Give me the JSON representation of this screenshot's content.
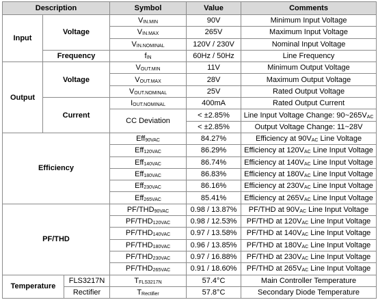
{
  "header": [
    "Description",
    "Symbol",
    "Value",
    "Comments"
  ],
  "sections": [
    {
      "name": "Input",
      "items": [
        {
          "name": "Voltage",
          "rows": [
            {
              "symbol": [
                {
                  "text": "V"
                },
                {
                  "sub": "IN.MIN"
                }
              ],
              "value": "90V",
              "comment": [
                {
                  "text": "Minimum Input Voltage"
                }
              ]
            },
            {
              "symbol": [
                {
                  "text": "V"
                },
                {
                  "sub": "IN.MAX"
                }
              ],
              "value": "265V",
              "comment": [
                {
                  "text": "Maximum Input Voltage"
                }
              ]
            },
            {
              "symbol": [
                {
                  "text": "V"
                },
                {
                  "sub": "IN.NOMINAL"
                }
              ],
              "value": "120V / 230V",
              "comment": [
                {
                  "text": "Nominal Input Voltage"
                }
              ]
            }
          ]
        },
        {
          "name": "Frequency",
          "rows": [
            {
              "symbol": [
                {
                  "text": "f"
                },
                {
                  "sub": "IN"
                }
              ],
              "value": "60Hz / 50Hz",
              "comment": [
                {
                  "text": "Line Frequency"
                }
              ]
            }
          ]
        }
      ]
    },
    {
      "name": "Output",
      "items": [
        {
          "name": "Voltage",
          "rows": [
            {
              "symbol": [
                {
                  "text": "V"
                },
                {
                  "sub": "OUT.MIN"
                }
              ],
              "value": "11V",
              "comment": [
                {
                  "text": "Minimum Output Voltage"
                }
              ]
            },
            {
              "symbol": [
                {
                  "text": "V"
                },
                {
                  "sub": "OUT.MAX"
                }
              ],
              "value": "28V",
              "comment": [
                {
                  "text": "Maximum Output Voltage"
                }
              ]
            },
            {
              "symbol": [
                {
                  "text": "V"
                },
                {
                  "sub": "OUT.NOMINAL"
                }
              ],
              "value": "25V",
              "comment": [
                {
                  "text": "Rated Output Voltage"
                }
              ]
            }
          ]
        },
        {
          "name": "Current",
          "rows": [
            {
              "symbol": [
                {
                  "text": "I"
                },
                {
                  "sub": "OUT.NOMINAL"
                }
              ],
              "value": "400mA",
              "comment": [
                {
                  "text": "Rated Output Current"
                }
              ]
            },
            {
              "symbol": [
                {
                  "text": "CC Deviation"
                }
              ],
              "value": "< ±2.85%",
              "comment": [
                {
                  "text": "Line Input Voltage Change: 90~265V"
                },
                {
                  "sub": "AC"
                }
              ]
            },
            {
              "value": "< ±2.85%",
              "comment": [
                {
                  "text": "Output Voltage Change: 11~28V"
                }
              ]
            }
          ]
        }
      ]
    },
    {
      "name": "Efficiency",
      "rows": [
        {
          "symbol": [
            {
              "text": "Eff"
            },
            {
              "sub": "90VAC"
            }
          ],
          "value": "84.27%",
          "comment": [
            {
              "text": "Efficiency at 90V"
            },
            {
              "sub": "AC"
            },
            {
              "text": " Line  Voltage"
            }
          ]
        },
        {
          "symbol": [
            {
              "text": "Eff"
            },
            {
              "sub": "120VAC"
            }
          ],
          "value": "86.29%",
          "comment": [
            {
              "text": "Efficiency at 120V"
            },
            {
              "sub": "AC"
            },
            {
              "text": " Line Input Voltage"
            }
          ]
        },
        {
          "symbol": [
            {
              "text": "Eff"
            },
            {
              "sub": "140VAC"
            }
          ],
          "value": "86.74%",
          "comment": [
            {
              "text": "Efficiency at 140V"
            },
            {
              "sub": "AC"
            },
            {
              "text": " Line Input Voltage"
            }
          ]
        },
        {
          "symbol": [
            {
              "text": "Eff"
            },
            {
              "sub": "180VAC"
            }
          ],
          "value": "86.83%",
          "comment": [
            {
              "text": "Efficiency at 180V"
            },
            {
              "sub": "AC"
            },
            {
              "text": " Line Input Voltage"
            }
          ]
        },
        {
          "symbol": [
            {
              "text": "Eff"
            },
            {
              "sub": "230VAC"
            }
          ],
          "value": "86.16%",
          "comment": [
            {
              "text": "Efficiency at 230V"
            },
            {
              "sub": "AC"
            },
            {
              "text": " Line Input Voltage"
            }
          ]
        },
        {
          "symbol": [
            {
              "text": "Eff"
            },
            {
              "sub": "265VAC"
            }
          ],
          "value": "85.41%",
          "comment": [
            {
              "text": "Efficiency at 265V"
            },
            {
              "sub": "AC"
            },
            {
              "text": " Line Input Voltage"
            }
          ]
        }
      ]
    },
    {
      "name": "PF/THD",
      "rows": [
        {
          "symbol": [
            {
              "text": "PF/THD"
            },
            {
              "sub": "90VAC"
            }
          ],
          "value": "0.98 / 13.87%",
          "comment": [
            {
              "text": "PF/THD at 90V"
            },
            {
              "sub": "AC"
            },
            {
              "text": " Line Input Voltage"
            }
          ]
        },
        {
          "symbol": [
            {
              "text": "PF/THD"
            },
            {
              "sub": "120VAC"
            }
          ],
          "value": "0.98 / 12.53%",
          "comment": [
            {
              "text": "PF/THD at 120V"
            },
            {
              "sub": "AC"
            },
            {
              "text": " Line Input Voltage"
            }
          ]
        },
        {
          "symbol": [
            {
              "text": "PF/THD"
            },
            {
              "sub": "140VAC"
            }
          ],
          "value": "0.97 / 13.58%",
          "comment": [
            {
              "text": "PF/THD at 140V"
            },
            {
              "sub": "AC"
            },
            {
              "text": " Line Input Voltage"
            }
          ]
        },
        {
          "symbol": [
            {
              "text": "PF/THD"
            },
            {
              "sub": "180VAC"
            }
          ],
          "value": "0.96 / 13.85%",
          "comment": [
            {
              "text": "PF/THD at 180V"
            },
            {
              "sub": "AC"
            },
            {
              "text": " Line Input Voltage"
            }
          ]
        },
        {
          "symbol": [
            {
              "text": "PF/THD"
            },
            {
              "sub": "230VAC"
            }
          ],
          "value": "0.97 / 16.88%",
          "comment": [
            {
              "text": "PF/THD at 230V"
            },
            {
              "sub": "AC"
            },
            {
              "text": " Line Input Voltage"
            }
          ]
        },
        {
          "symbol": [
            {
              "text": "PF/THD"
            },
            {
              "sub": "265VAC"
            }
          ],
          "value": "0.91 / 18.60%",
          "comment": [
            {
              "text": "PF/THD at 265V"
            },
            {
              "sub": "AC"
            },
            {
              "text": " Line Input Voltage"
            }
          ]
        }
      ]
    },
    {
      "name": "Temperature",
      "items": [
        {
          "name": "FLS3217N",
          "rows": [
            {
              "symbol": [
                {
                  "text": "T"
                },
                {
                  "sub": "FLS3217N"
                }
              ],
              "value": "57.4°C",
              "comment": [
                {
                  "text": "Main Controller Temperature"
                }
              ]
            }
          ]
        },
        {
          "name": "Rectifier",
          "rows": [
            {
              "symbol": [
                {
                  "text": "T"
                },
                {
                  "sub": "Rectifier"
                }
              ],
              "value": "57.8°C",
              "comment": [
                {
                  "text": "Secondary Diode Temperature"
                }
              ]
            }
          ]
        }
      ]
    }
  ]
}
